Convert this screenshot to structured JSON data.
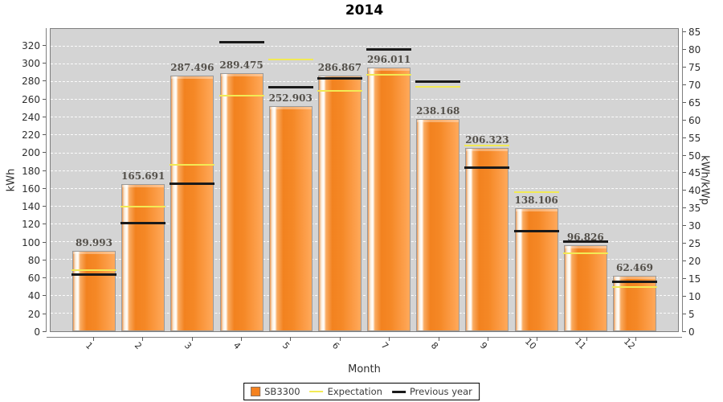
{
  "title": "2014",
  "chart_data": {
    "type": "bar",
    "title": "2014",
    "xlabel": "Month",
    "ylabel": "kWh",
    "ylabel_right": "kWh/kWp",
    "categories": [
      "1",
      "2",
      "3",
      "4",
      "5",
      "6",
      "7",
      "8",
      "9",
      "10",
      "11",
      "12"
    ],
    "series": [
      {
        "name": "SB3300",
        "type": "bar",
        "color": "#f5821f",
        "values": [
          89.993,
          165.691,
          287.496,
          289.475,
          252.903,
          286.867,
          296.011,
          238.168,
          206.323,
          138.106,
          96.826,
          62.469
        ]
      },
      {
        "name": "Expectation",
        "type": "level-line",
        "color": "#f2ea55",
        "values": [
          68,
          139,
          186,
          264,
          304,
          269,
          287,
          274,
          208,
          155,
          87,
          49
        ]
      },
      {
        "name": "Previous year",
        "type": "level-line",
        "color": "#1a1a1a",
        "values": [
          62,
          120,
          164,
          323,
          273,
          283,
          315,
          279,
          182,
          111,
          99,
          54
        ]
      }
    ],
    "axis_left": {
      "label": "kWh",
      "min": 0,
      "max": 320,
      "step": 20,
      "scale_max": 339.5
    },
    "axis_right": {
      "label": "kWh/kWp",
      "min": 0,
      "max": 85,
      "step": 5,
      "scale_max": 86.1
    },
    "grid": true,
    "gridline_style": "white-dashed",
    "legend_position": "bottom",
    "bar_value_decimals": 3
  },
  "colors": {
    "plot_background": "#d4d4d4",
    "bar_orange": "#f5821f",
    "expectation_yellow": "#f2ea55",
    "previous_year_black": "#1a1a1a",
    "value_label": "#54504a"
  }
}
